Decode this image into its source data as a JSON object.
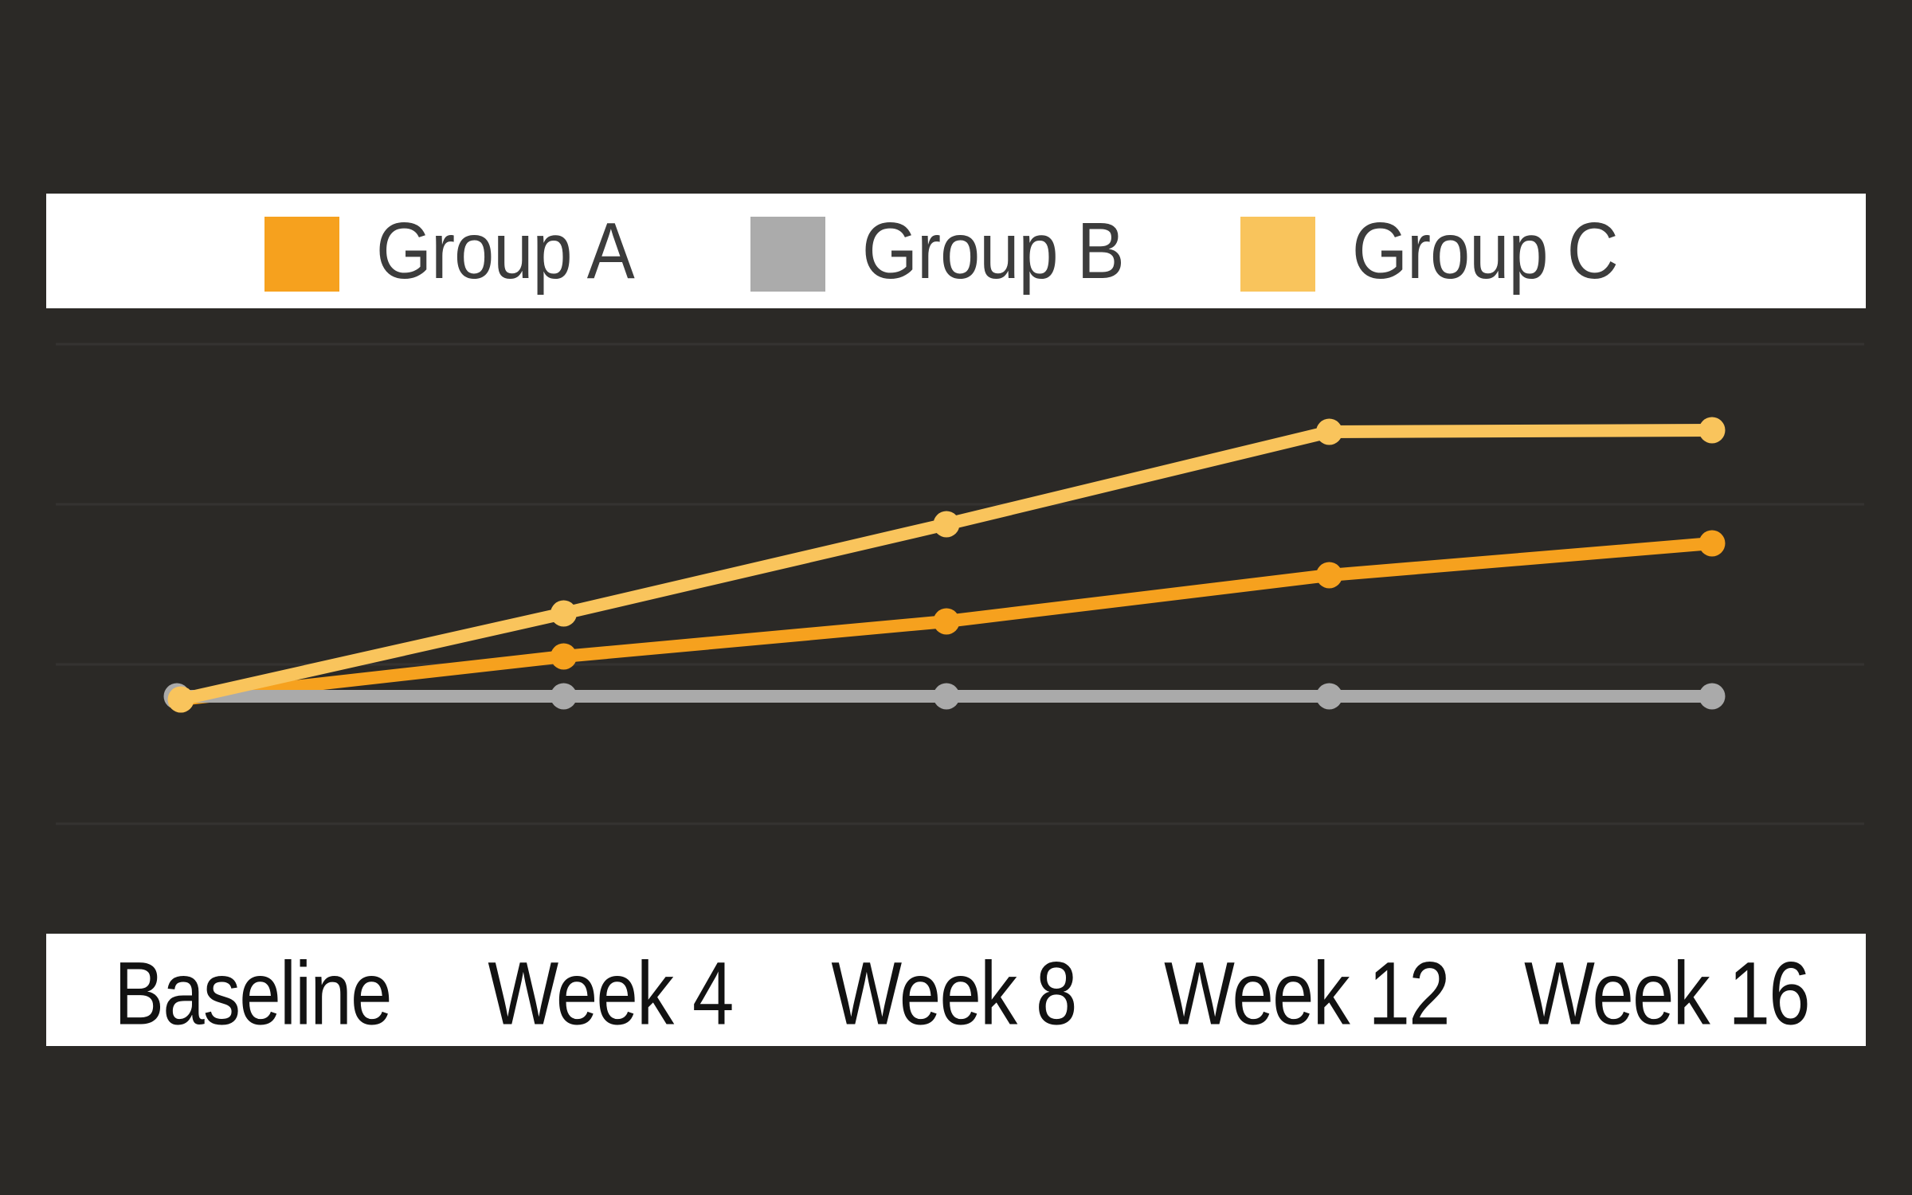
{
  "legend": {
    "items": [
      {
        "label": "Group A",
        "color": "#F6A11E"
      },
      {
        "label": "Group B",
        "color": "#ABABAB"
      },
      {
        "label": "Group C",
        "color": "#F9C45C"
      }
    ]
  },
  "chart_data": {
    "type": "line",
    "categories": [
      "Baseline",
      "Week 4",
      "Week 8",
      "Week 12",
      "Week 16"
    ],
    "series": [
      {
        "name": "Group A",
        "color": "#F6A11E",
        "values": [
          0,
          0.27,
          0.49,
          0.78,
          0.98
        ]
      },
      {
        "name": "Group B",
        "color": "#AAAAAA",
        "values": [
          0.02,
          0.02,
          0.02,
          0.02,
          0.02
        ]
      },
      {
        "name": "Group C",
        "color": "#F9C45C",
        "values": [
          0,
          0.54,
          1.1,
          1.68,
          1.69
        ]
      }
    ],
    "title": "",
    "xlabel": "",
    "ylabel": "",
    "ylim": [
      -1.45,
      3.0
    ],
    "grid": true,
    "y_axis_labels_visible": false,
    "legend_position": "top",
    "markers": "circle"
  },
  "colors": {
    "background": "#2B2926",
    "panel": "#FFFFFF",
    "legend_text": "#3C3C3C",
    "axis_text": "#121212",
    "gridline": "rgba(255,255,255,0.05)"
  }
}
